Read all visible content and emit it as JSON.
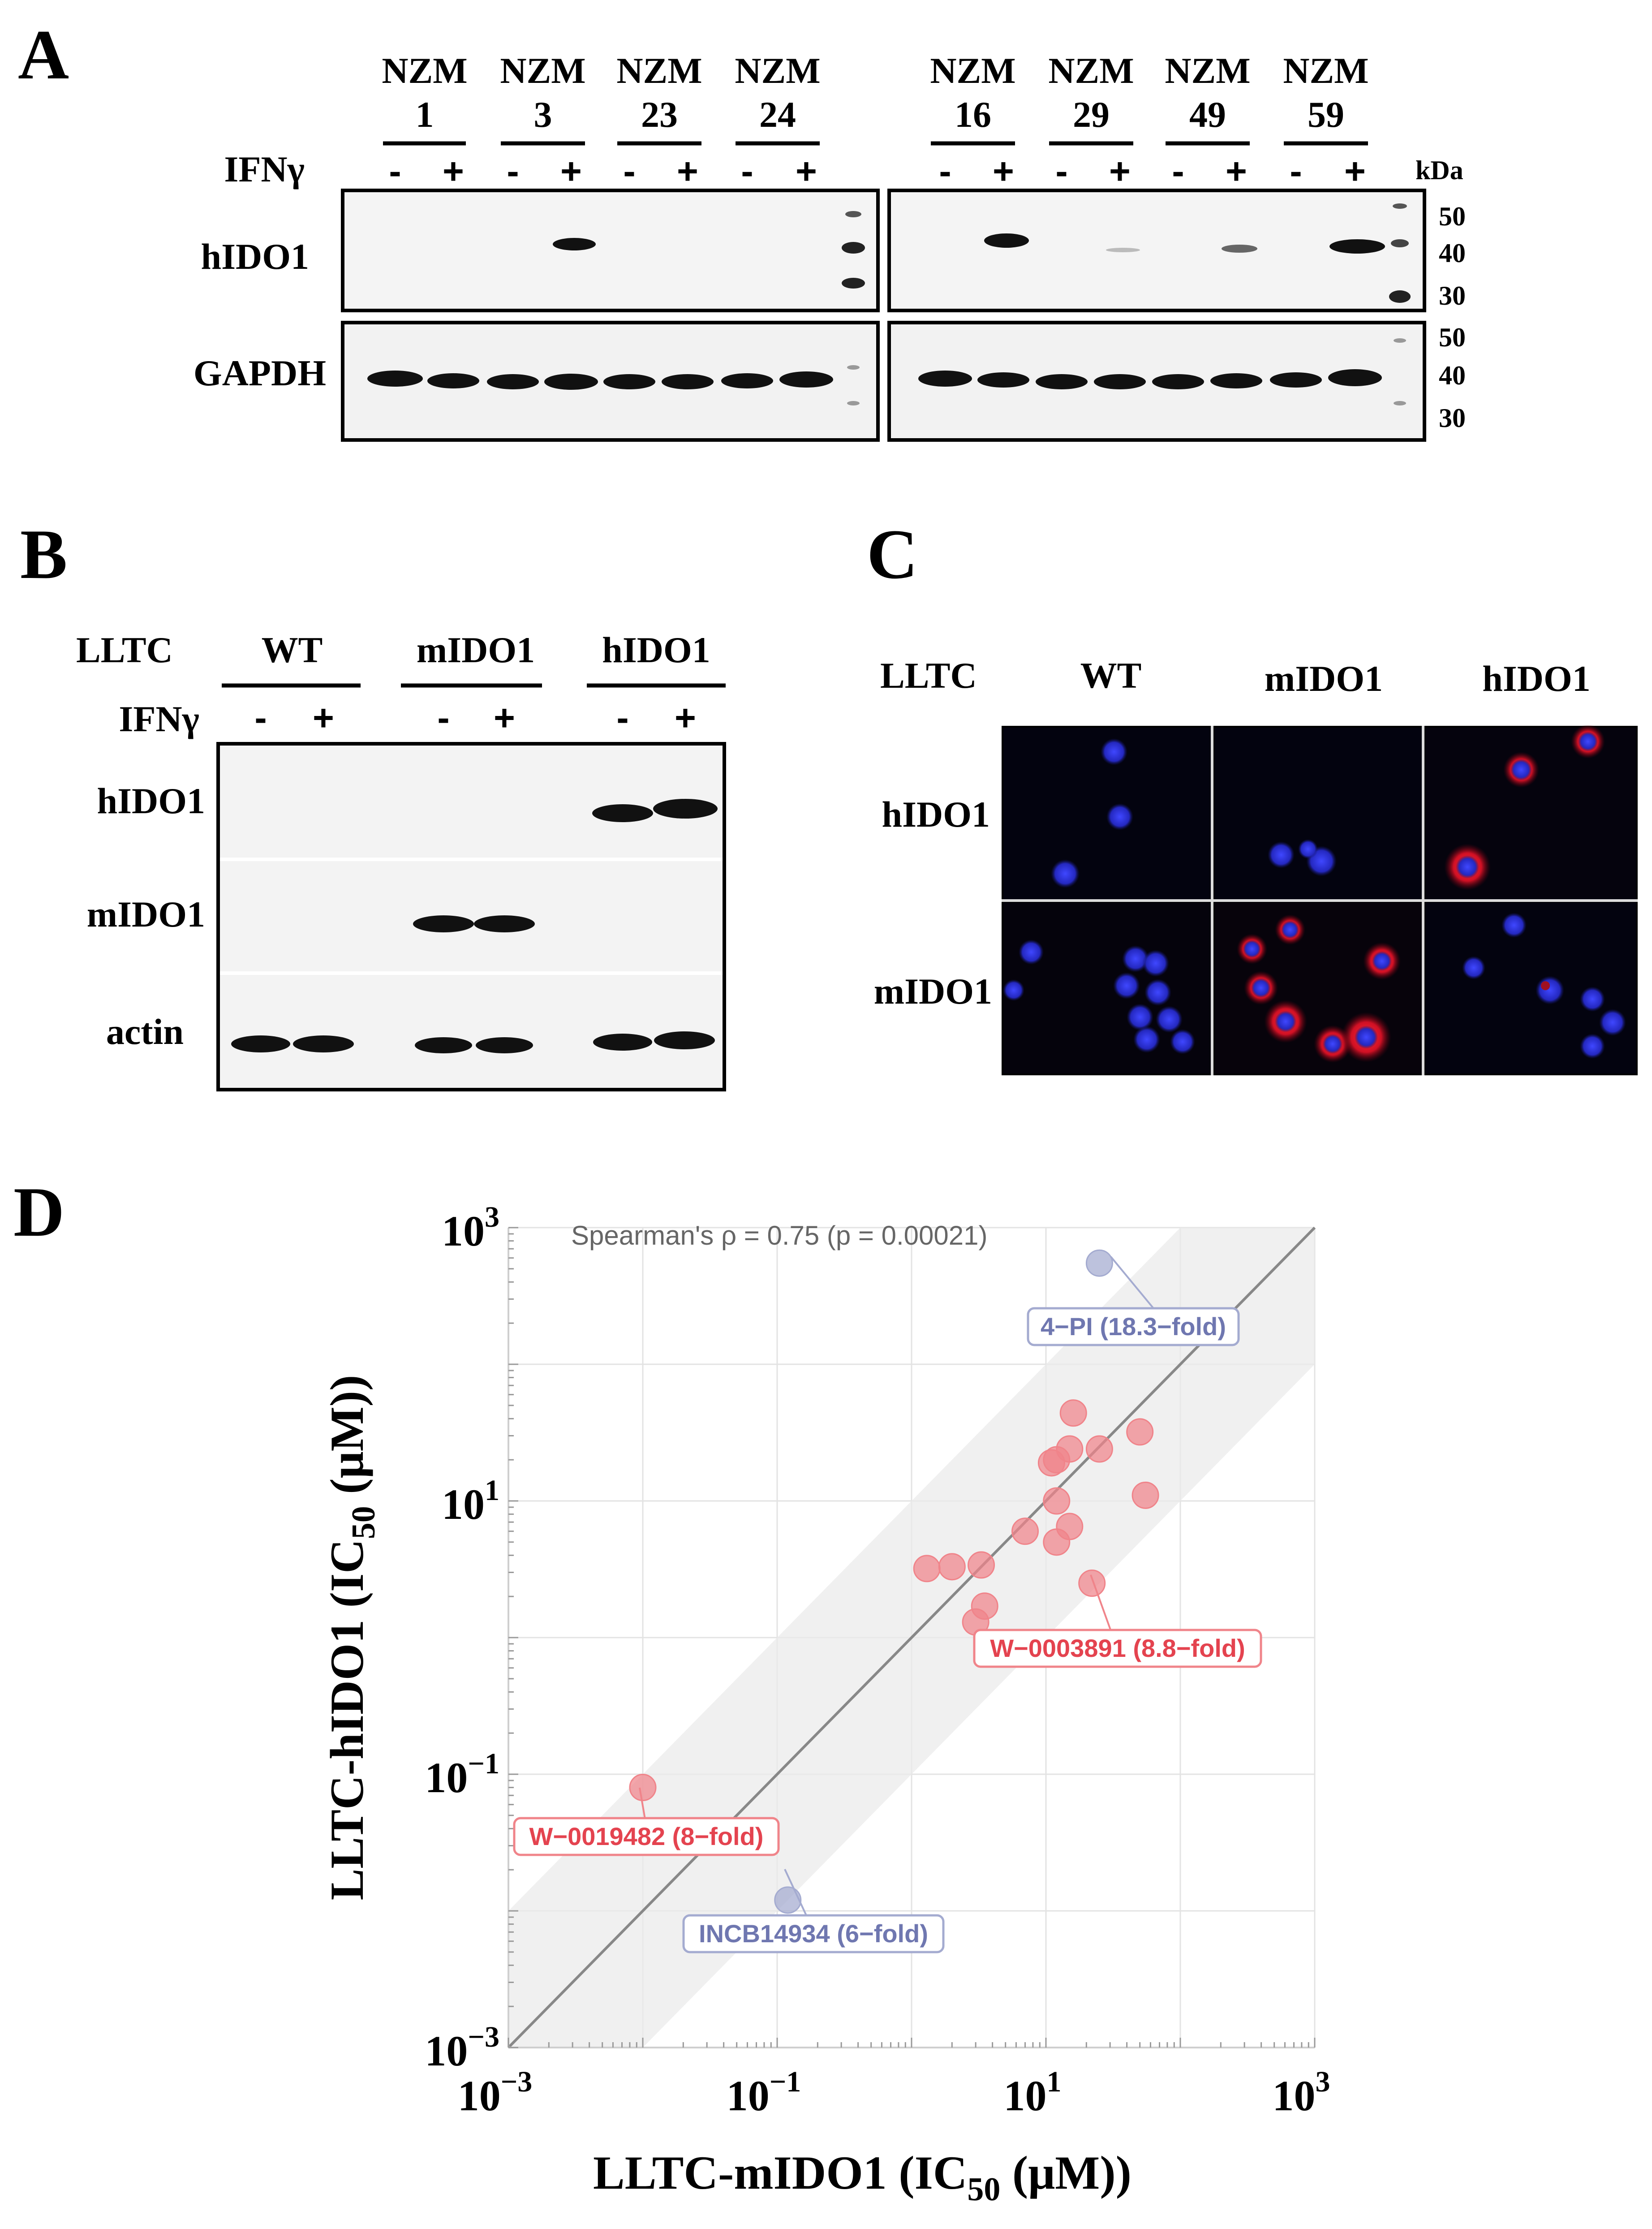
{
  "panels": {
    "a": "A",
    "b": "B",
    "c": "C",
    "d": "D"
  },
  "panel_a": {
    "lanes_left": [
      {
        "l1": "NZM",
        "l2": "1"
      },
      {
        "l1": "NZM",
        "l2": "3"
      },
      {
        "l1": "NZM",
        "l2": "23"
      },
      {
        "l1": "NZM",
        "l2": "24"
      }
    ],
    "lanes_right": [
      {
        "l1": "NZM",
        "l2": "16"
      },
      {
        "l1": "NZM",
        "l2": "29"
      },
      {
        "l1": "NZM",
        "l2": "49"
      },
      {
        "l1": "NZM",
        "l2": "59"
      }
    ],
    "treatment": "IFNγ",
    "minus": "-",
    "plus": "+",
    "kda": "kDa",
    "rows": [
      "hIDO1",
      "GAPDH"
    ],
    "markers_top": [
      "50",
      "40",
      "30"
    ],
    "markers_bottom": [
      "50",
      "40",
      "30"
    ]
  },
  "panel_b": {
    "cell": "LLTC",
    "groups": [
      "WT",
      "mIDO1",
      "hIDO1"
    ],
    "treatment": "IFNγ",
    "rows": [
      "hIDO1",
      "mIDO1",
      "actin"
    ]
  },
  "panel_c": {
    "cell": "LLTC",
    "cols": [
      "WT",
      "mIDO1",
      "hIDO1"
    ],
    "rows": [
      "hIDO1",
      "mIDO1"
    ]
  },
  "panel_d": {
    "stat_text": "Spearman's ρ  = 0.75 (p = 0.00021)",
    "xlabel_pre": "LLTC-mIDO1  (IC",
    "xlabel_sub": "50",
    "xlabel_post": " (μM))",
    "ylabel_pre": "LLTC-hIDO1  (IC",
    "ylabel_sub": "50",
    "ylabel_post": " (μM))",
    "tick_base": "10",
    "tick_exps": [
      "−3",
      "−1",
      "1",
      "3"
    ],
    "annotations": [
      "4−PI (18.3−fold)",
      "W−0003891 (8.8−fold)",
      "W−0019482 (8−fold)",
      "INCB14934 (6−fold)"
    ]
  },
  "chart_data": {
    "type": "scatter",
    "title": "",
    "xlabel": "LLTC-mIDO1 (IC50 (μM))",
    "ylabel": "LLTC-hIDO1 (IC50 (μM))",
    "xscale": "log",
    "yscale": "log",
    "xlim": [
      0.001,
      1000
    ],
    "ylim": [
      0.001,
      1000
    ],
    "grid": true,
    "identity_line": true,
    "shaded_band": "10-fold around identity",
    "colors": {
      "compound": "#f0848a",
      "reference": "#a4abd0"
    },
    "series": [
      {
        "name": "",
        "color": "#f0848a",
        "x": [
          16,
          50,
          25,
          15,
          12,
          11,
          55,
          12,
          7,
          15,
          12,
          22,
          1.3,
          2,
          3.3,
          3.5,
          3,
          0.01
        ],
        "y": [
          44,
          32,
          24,
          24,
          20,
          19,
          11,
          10,
          6,
          6.5,
          5,
          2.5,
          3.2,
          3.3,
          3.4,
          1.7,
          1.3,
          0.08
        ]
      },
      {
        "name": "",
        "color": "#a4abd0",
        "x": [
          25,
          0.12
        ],
        "y": [
          550,
          0.012
        ]
      }
    ]
  }
}
